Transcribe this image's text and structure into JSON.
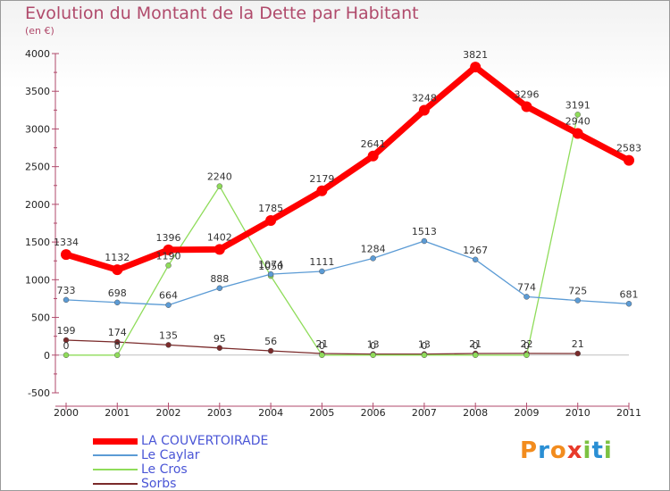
{
  "title": "Evolution du Montant de la Dette par Habitant",
  "subtitle": "(en €)",
  "logo": {
    "letters": [
      "P",
      "r",
      "o",
      "x",
      "i",
      "t",
      "i"
    ],
    "colors": [
      "#f28c1e",
      "#2a8fd4",
      "#f28c1e",
      "#e83a2a",
      "#7cc242",
      "#2a8fd4",
      "#7cc242"
    ]
  },
  "chart_data": {
    "type": "line",
    "x": [
      "2000",
      "2001",
      "2002",
      "2003",
      "2004",
      "2005",
      "2006",
      "2007",
      "2008",
      "2009",
      "2010",
      "2011"
    ],
    "ylim": [
      -500,
      4000
    ],
    "yticks": [
      "-500",
      "0",
      "500",
      "1000",
      "1500",
      "2000",
      "2500",
      "3000",
      "3500",
      "4000"
    ],
    "grid": false,
    "legend_position": "bottom-left",
    "series": [
      {
        "name": "LA COUVERTOIRADE",
        "color": "#ff0000",
        "values": [
          1334,
          1132,
          1396,
          1402,
          1785,
          2179,
          2641,
          3248,
          3821,
          3296,
          2940,
          2583
        ],
        "labels": [
          "1334",
          "1132",
          "1396",
          "1402",
          "1785",
          "2179",
          "2641",
          "3248",
          "3821",
          "3296",
          "2940",
          "2583"
        ]
      },
      {
        "name": "Le Caylar",
        "color": "#5b9bd5",
        "values": [
          733,
          698,
          664,
          888,
          1074,
          1111,
          1284,
          1513,
          1267,
          774,
          725,
          681
        ],
        "labels": [
          "733",
          "698",
          "664",
          "888",
          "1074",
          "1111",
          "1284",
          "1513",
          "1267",
          "774",
          "725",
          "681"
        ]
      },
      {
        "name": "Le Cros",
        "color": "#8fdc5a",
        "values": [
          0,
          0,
          1190,
          2240,
          1050,
          0,
          0,
          0,
          0,
          0,
          3191,
          null
        ],
        "labels": [
          "0",
          "0",
          "1190",
          "2240",
          "1050",
          "0",
          "0",
          "0",
          "0",
          "0",
          "3191",
          ""
        ]
      },
      {
        "name": "Sorbs",
        "color": "#7a2a2a",
        "values": [
          199,
          174,
          135,
          95,
          56,
          21,
          13,
          13,
          21,
          22,
          21,
          null
        ],
        "labels": [
          "199",
          "174",
          "135",
          "95",
          "56",
          "21",
          "13",
          "13",
          "21",
          "22",
          "21",
          ""
        ]
      }
    ]
  }
}
